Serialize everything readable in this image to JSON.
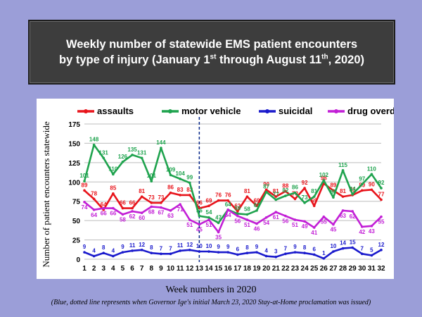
{
  "title": {
    "line1": "Weekly number of statewide EMS patient encounters",
    "line2_a": "by type of injury (January 1",
    "line2_sup1": "st",
    "line2_b": " through August 11",
    "line2_sup2": "th",
    "line2_c": ", 2020)"
  },
  "week_caption": "Week numbers in 2020",
  "footnote": "(Blue, dotted line represents when Governor Ige's initial March 23, 2020 Stay-at-Home proclamation was issued)",
  "chart_data": {
    "type": "line",
    "title": "Weekly number of statewide EMS patient encounters by type of injury (January 1st through August 11th, 2020)",
    "xlabel": "Week numbers in 2020",
    "ylabel": "Number of patient encounters statewide",
    "ylim": [
      0,
      175
    ],
    "yticks": [
      0,
      25,
      50,
      75,
      100,
      125,
      150,
      175
    ],
    "x": [
      1,
      2,
      3,
      4,
      5,
      6,
      7,
      8,
      9,
      10,
      11,
      12,
      13,
      14,
      15,
      16,
      17,
      18,
      19,
      20,
      21,
      22,
      23,
      24,
      25,
      26,
      27,
      28,
      29,
      30,
      31,
      32
    ],
    "vline_week": 13,
    "legend_position": "top",
    "series": [
      {
        "name": "assaults",
        "color": "#e8141b",
        "values": [
          89,
          78,
          64,
          85,
          66,
          66,
          81,
          73,
          73,
          86,
          83,
          83,
          66,
          69,
          76,
          76,
          62,
          81,
          69,
          90,
          81,
          88,
          78,
          92,
          69,
          98,
          89,
          81,
          83,
          89,
          90,
          77
        ]
      },
      {
        "name": "motor vehicle",
        "color": "#1fa34e",
        "values": [
          101,
          148,
          131,
          110,
          126,
          135,
          131,
          101,
          144,
          109,
          104,
          99,
          56,
          54,
          47,
          64,
          59,
          58,
          63,
          87,
          77,
          82,
          86,
          73,
          81,
          102,
          80,
          115,
          84,
          97,
          110,
          92
        ]
      },
      {
        "name": "suicidal",
        "color": "#1a1acc",
        "values": [
          9,
          4,
          8,
          4,
          9,
          11,
          12,
          8,
          7,
          7,
          11,
          12,
          10,
          10,
          9,
          9,
          6,
          8,
          9,
          4,
          3,
          7,
          9,
          8,
          6,
          1,
          10,
          14,
          15,
          7,
          5,
          12
        ]
      },
      {
        "name": "drug overdose",
        "color": "#c21fd6",
        "values": [
          74,
          64,
          66,
          66,
          58,
          62,
          60,
          68,
          67,
          63,
          71,
          51,
          45,
          51,
          35,
          64,
          56,
          51,
          46,
          54,
          61,
          56,
          51,
          49,
          41,
          55,
          45,
          63,
          62,
          42,
          43,
          55
        ]
      }
    ]
  }
}
